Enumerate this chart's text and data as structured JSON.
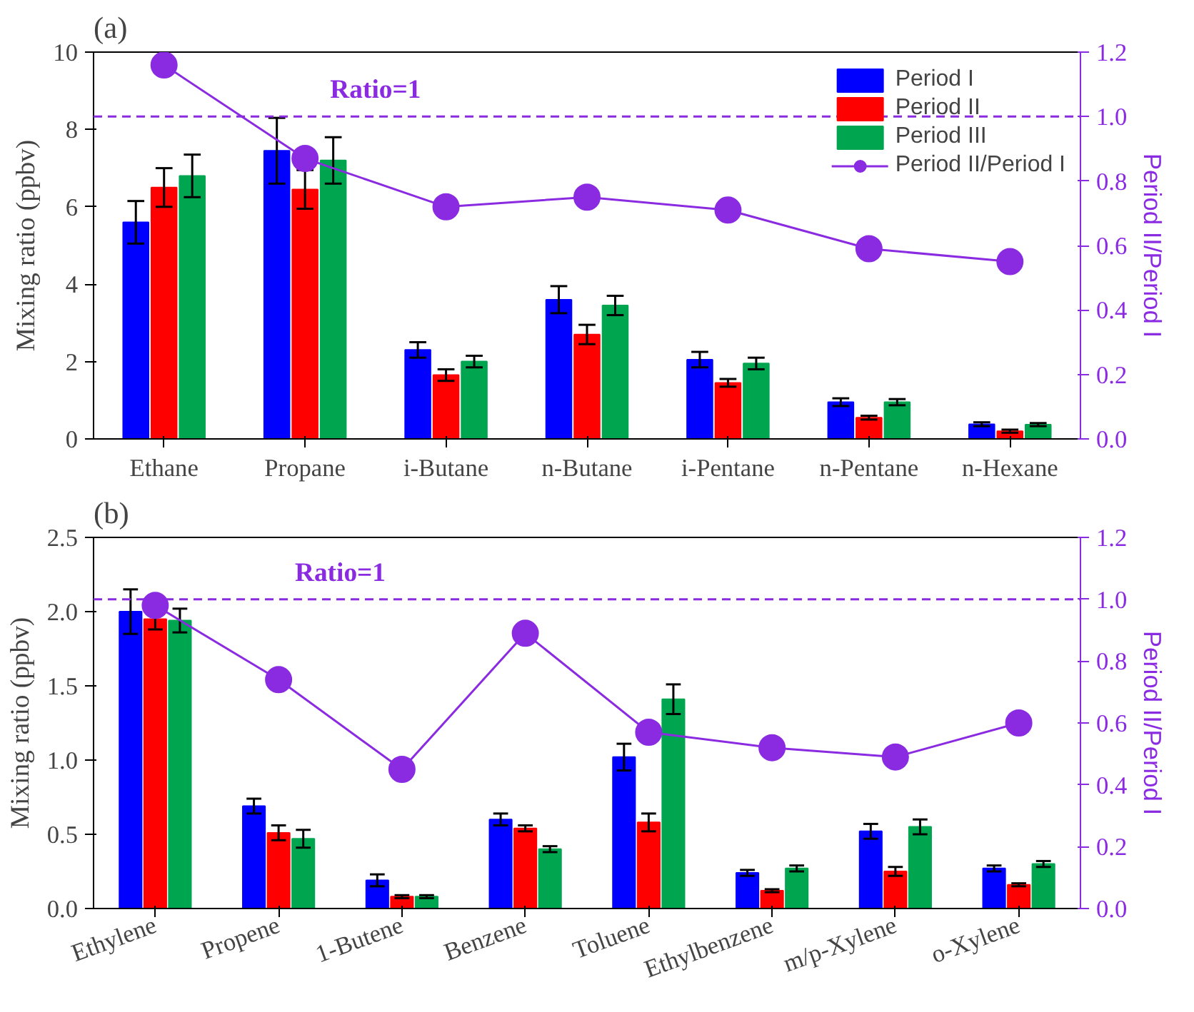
{
  "chart_data": [
    {
      "type": "bar",
      "title": "(a)",
      "ylabel": "Mixing ratio (ppbv)",
      "y2label": "Period II/Period I",
      "categories": [
        "Ethane",
        "Propane",
        "i-Butane",
        "n-Butane",
        "i-Pentane",
        "n-Pentane",
        "n-Hexane"
      ],
      "ylim": [
        0,
        10
      ],
      "yticks": [
        0,
        2,
        4,
        6,
        8,
        10
      ],
      "y2lim": [
        0,
        1.2
      ],
      "y2ticks": [
        {
          "value": 0,
          "label": "0.0"
        },
        {
          "value": 0.2,
          "label": "0.2"
        },
        {
          "value": 0.4,
          "label": "0.4"
        },
        {
          "value": 0.6,
          "label": "0.6"
        },
        {
          "value": 0.8,
          "label": "0.8"
        },
        {
          "value": 1.0,
          "label": "1.0"
        },
        {
          "value": 1.2,
          "label": "1.2"
        }
      ],
      "legend": "top right",
      "series": [
        {
          "name": "Period I",
          "color": "#0000ff",
          "values": [
            5.6,
            7.45,
            2.3,
            3.6,
            2.05,
            0.95,
            0.38
          ],
          "errors": [
            0.55,
            0.85,
            0.2,
            0.35,
            0.2,
            0.1,
            0.05
          ]
        },
        {
          "name": "Period II",
          "color": "#ff0000",
          "values": [
            6.5,
            6.45,
            1.65,
            2.7,
            1.45,
            0.55,
            0.2
          ],
          "errors": [
            0.5,
            0.5,
            0.15,
            0.25,
            0.1,
            0.05,
            0.04
          ]
        },
        {
          "name": "Period III",
          "color": "#00a550",
          "values": [
            6.8,
            7.2,
            2.0,
            3.45,
            1.95,
            0.95,
            0.37
          ],
          "errors": [
            0.55,
            0.6,
            0.15,
            0.25,
            0.15,
            0.08,
            0.04
          ]
        },
        {
          "name": "Period II/Period I",
          "type": "line",
          "axis": "y2",
          "marker": "circle",
          "color": "#8a2be2",
          "values": [
            1.16,
            0.87,
            0.72,
            0.75,
            0.71,
            0.59,
            0.55
          ]
        }
      ],
      "ref_lines": [
        {
          "axis": "y2",
          "value": 1.0,
          "label": "Ratio=1",
          "color": "#8a2be2",
          "line_style": "dashed"
        }
      ]
    },
    {
      "type": "bar",
      "title": "(b)",
      "ylabel": "Mixing ratio (ppbv)",
      "y2label": "Period II/Period I",
      "categories": [
        "Ethylene",
        "Propene",
        "1-Butene",
        "Benzene",
        "Toluene",
        "Ethylbenzene",
        "m/p-Xylene",
        "o-Xylene"
      ],
      "ylim": [
        0,
        2.5
      ],
      "yticks": [
        {
          "value": 0,
          "label": "0.0"
        },
        {
          "value": 0.5,
          "label": "0.5"
        },
        {
          "value": 1.0,
          "label": "1.0"
        },
        {
          "value": 1.5,
          "label": "1.5"
        },
        {
          "value": 2.0,
          "label": "2.0"
        },
        {
          "value": 2.5,
          "label": "2.5"
        }
      ],
      "y2lim": [
        0,
        1.2
      ],
      "y2ticks": [
        {
          "value": 0,
          "label": "0.0"
        },
        {
          "value": 0.2,
          "label": "0.2"
        },
        {
          "value": 0.4,
          "label": "0.4"
        },
        {
          "value": 0.6,
          "label": "0.6"
        },
        {
          "value": 0.8,
          "label": "0.8"
        },
        {
          "value": 1.0,
          "label": "1.0"
        },
        {
          "value": 1.2,
          "label": "1.2"
        }
      ],
      "series": [
        {
          "color": "#0000ff",
          "values": [
            2.0,
            0.69,
            0.19,
            0.6,
            1.02,
            0.24,
            0.52,
            0.27
          ],
          "errors": [
            0.15,
            0.05,
            0.04,
            0.04,
            0.09,
            0.02,
            0.05,
            0.02
          ]
        },
        {
          "color": "#ff0000",
          "values": [
            1.95,
            0.51,
            0.08,
            0.54,
            0.58,
            0.12,
            0.25,
            0.16
          ],
          "errors": [
            0.07,
            0.05,
            0.01,
            0.02,
            0.06,
            0.01,
            0.03,
            0.01
          ]
        },
        {
          "color": "#00a550",
          "values": [
            1.94,
            0.47,
            0.08,
            0.4,
            1.41,
            0.27,
            0.55,
            0.3
          ],
          "errors": [
            0.08,
            0.06,
            0.01,
            0.02,
            0.1,
            0.02,
            0.05,
            0.02
          ]
        },
        {
          "type": "line",
          "axis": "y2",
          "marker": "circle",
          "color": "#8a2be2",
          "values": [
            0.98,
            0.74,
            0.45,
            0.89,
            0.57,
            0.52,
            0.49,
            0.6
          ]
        }
      ],
      "ref_lines": [
        {
          "axis": "y2",
          "value": 1.0,
          "label": "Ratio=1",
          "color": "#8a2be2",
          "line_style": "dashed"
        }
      ]
    }
  ]
}
